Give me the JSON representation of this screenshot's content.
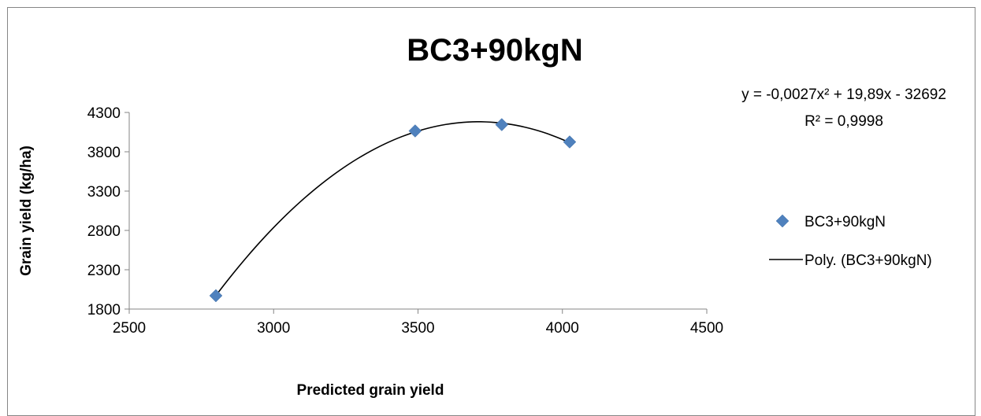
{
  "chart_data": {
    "type": "scatter",
    "title": "BC3+90kgN",
    "xlabel": "Predicted grain yield",
    "ylabel": "Grain yield (kg/ha)",
    "xlim": [
      2500,
      4500
    ],
    "ylim": [
      1800,
      4300
    ],
    "xticks": [
      "2500",
      "3000",
      "3500",
      "4000",
      "4500"
    ],
    "yticks": [
      "1800",
      "2300",
      "2800",
      "3300",
      "3800",
      "4300"
    ],
    "series": [
      {
        "name": "BC3+90kgN",
        "color": "#4f81bd",
        "marker": "diamond",
        "x": [
          2800,
          3490,
          3790,
          4025
        ],
        "y": [
          1970,
          4065,
          4145,
          3925
        ]
      }
    ],
    "trendline": {
      "name": "Poly. (BC3+90kgN)",
      "type": "polynomial",
      "order": 2,
      "color": "#000000",
      "equation": "y = -0,0027x² + 19,89x - 32692",
      "r_squared": "R² = 0,9998",
      "x_range": [
        2800,
        4025
      ]
    },
    "legend_position": "right",
    "grid": false
  }
}
